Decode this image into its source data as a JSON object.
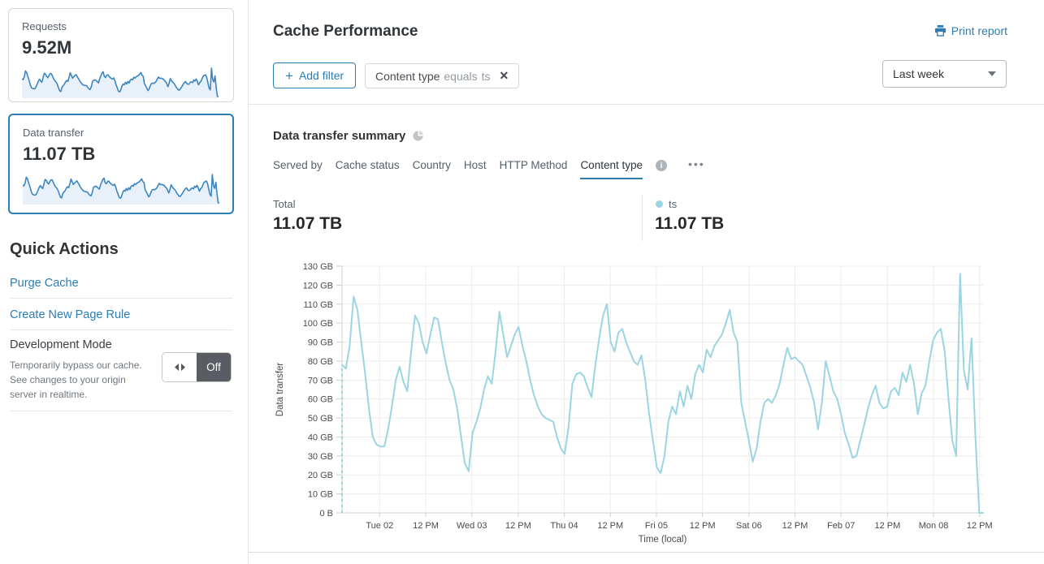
{
  "colors": {
    "accent": "#2c7cb5",
    "chart_line": "#9bd5e4",
    "spark_line": "#3b86c2",
    "spark_fill": "#e8f1f9",
    "toggle_dark": "#595d63",
    "tab_underline": "#2d7cae",
    "grid": "#ececec",
    "axis": "#cfcfcf"
  },
  "sidebar": {
    "cards": [
      {
        "label": "Requests",
        "value": "9.52M",
        "selected": false
      },
      {
        "label": "Data transfer",
        "value": "11.07 TB",
        "selected": true
      }
    ],
    "quick_actions": {
      "title": "Quick Actions",
      "links": [
        "Purge Cache",
        "Create New Page Rule"
      ],
      "dev_mode": {
        "title": "Development Mode",
        "description": "Temporarily bypass our cache. See changes to your origin server in realtime.",
        "toggle_label": "Off"
      }
    }
  },
  "header": {
    "title": "Cache Performance",
    "print_label": "Print report"
  },
  "filters": {
    "add_label": "Add filter",
    "chip": {
      "field": "Content type",
      "operator": "equals",
      "value": "ts"
    },
    "time_range": "Last week"
  },
  "summary": {
    "title": "Data transfer summary",
    "tabs": [
      {
        "label": "Served by",
        "active": false
      },
      {
        "label": "Cache status",
        "active": false
      },
      {
        "label": "Country",
        "active": false
      },
      {
        "label": "Host",
        "active": false
      },
      {
        "label": "HTTP Method",
        "active": false
      },
      {
        "label": "Content type",
        "active": true
      }
    ],
    "total_label": "Total",
    "total_value": "11.07 TB",
    "legend": {
      "name": "ts",
      "value": "11.07 TB"
    }
  },
  "icons": {
    "more": "•••",
    "info": "i",
    "close": "✕",
    "plus": "+"
  },
  "chart_data": {
    "type": "line",
    "title": "Data transfer summary",
    "xlabel": "Time (local)",
    "ylabel": "Data transfer",
    "ylim": [
      0,
      130
    ],
    "y_tick_step": 10,
    "y_tick_labels": [
      "0 B",
      "10 GB",
      "20 GB",
      "30 GB",
      "40 GB",
      "50 GB",
      "60 GB",
      "70 GB",
      "80 GB",
      "90 GB",
      "100 GB",
      "110 GB",
      "120 GB",
      "130 GB"
    ],
    "x_tick_labels": [
      "Tue 02",
      "12 PM",
      "Wed 03",
      "12 PM",
      "Thu 04",
      "12 PM",
      "Fri 05",
      "12 PM",
      "Sat 06",
      "12 PM",
      "Feb 07",
      "12 PM",
      "Mon 08",
      "12 PM"
    ],
    "x_tick_indices": [
      9.8,
      21.8,
      33.8,
      45.9,
      57.9,
      69.9,
      81.9,
      93.9,
      106.0,
      118.0,
      130.0,
      142.1,
      154.1,
      166.1
    ],
    "grid": true,
    "leading_dashed_baseline": true,
    "legend_position": "top",
    "series": [
      {
        "name": "ts",
        "unit": "GB",
        "total": "11.07 TB",
        "color": "#9bd5e4",
        "values_gb": [
          78,
          76,
          88,
          114,
          107,
          90,
          74,
          55,
          40,
          36,
          35,
          35,
          44,
          56,
          70,
          77,
          69,
          64,
          85,
          104,
          100,
          90,
          84,
          94,
          103,
          102,
          90,
          79,
          70,
          65,
          55,
          40,
          26,
          22,
          42,
          48,
          55,
          65,
          72,
          68,
          85,
          106,
          94,
          82,
          88,
          94,
          98,
          88,
          80,
          70,
          62,
          56,
          52,
          50,
          49,
          48,
          40,
          34,
          31,
          45,
          68,
          73,
          74,
          72,
          66,
          61,
          78,
          92,
          104,
          110,
          90,
          85,
          95,
          97,
          90,
          85,
          80,
          78,
          83,
          70,
          52,
          38,
          24,
          21,
          30,
          48,
          56,
          52,
          64,
          56,
          67,
          60,
          73,
          78,
          74,
          86,
          82,
          88,
          91,
          94,
          100,
          107,
          95,
          90,
          58,
          48,
          38,
          27,
          34,
          48,
          58,
          60,
          58,
          62,
          68,
          78,
          87,
          81,
          82,
          80,
          78,
          72,
          66,
          58,
          44,
          58,
          80,
          72,
          64,
          60,
          52,
          42,
          36,
          29,
          30,
          38,
          46,
          55,
          62,
          67,
          58,
          55,
          56,
          64,
          66,
          62,
          74,
          69,
          78,
          68,
          52,
          63,
          67,
          80,
          91,
          95,
          97,
          85,
          60,
          38,
          30,
          126,
          75,
          65,
          92,
          40,
          0,
          0
        ]
      }
    ]
  }
}
